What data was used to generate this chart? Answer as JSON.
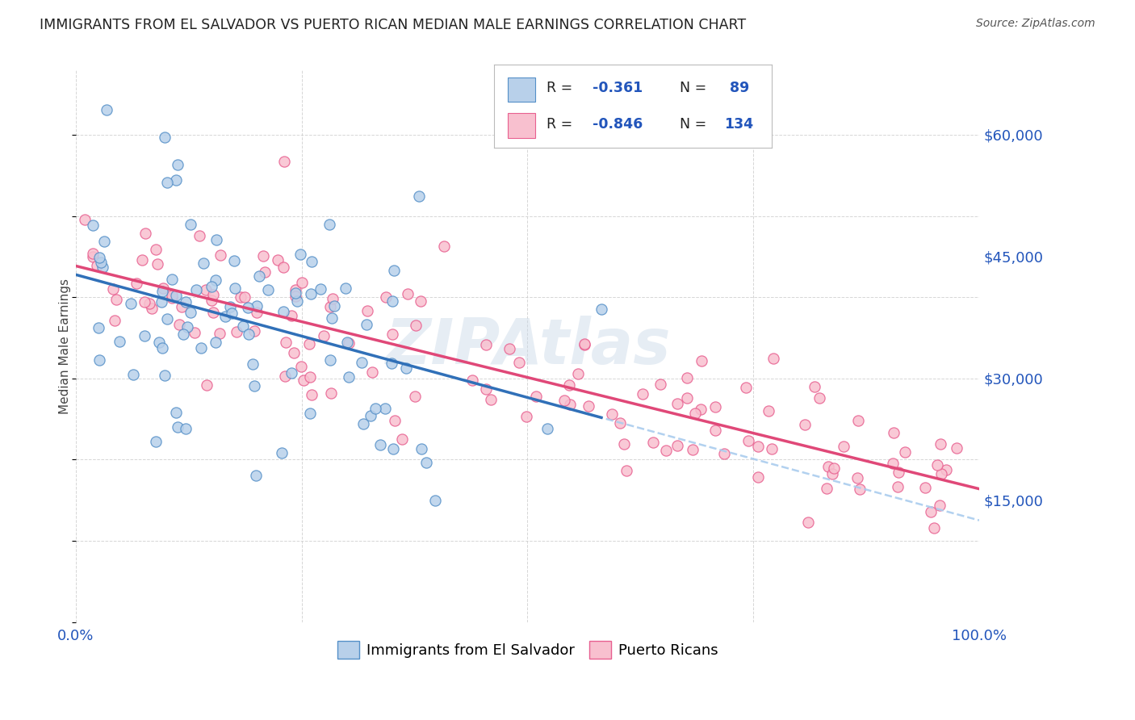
{
  "title": "IMMIGRANTS FROM EL SALVADOR VS PUERTO RICAN MEDIAN MALE EARNINGS CORRELATION CHART",
  "source": "Source: ZipAtlas.com",
  "ylabel": "Median Male Earnings",
  "legend_label1": "Immigrants from El Salvador",
  "legend_label2": "Puerto Ricans",
  "r1": -0.361,
  "n1": 89,
  "r2": -0.846,
  "n2": 134,
  "color_blue_fill": "#b8d0ea",
  "color_blue_edge": "#5590c8",
  "color_pink_fill": "#f8c0cf",
  "color_pink_edge": "#e86090",
  "color_line_blue": "#3070b8",
  "color_line_pink": "#e04878",
  "color_dash": "#aaccee",
  "yticks": [
    15000,
    30000,
    45000,
    60000
  ],
  "ytick_labels": [
    "$15,000",
    "$30,000",
    "$45,000",
    "$60,000"
  ],
  "ymin": 0,
  "ymax": 68000,
  "xmin": 0.0,
  "xmax": 1.0,
  "title_color": "#222222",
  "source_color": "#555555",
  "watermark": "ZIPAtlas",
  "watermark_color": "#c8d8e8",
  "tick_color": "#2255bb",
  "seed_blue": 7,
  "seed_pink": 13
}
